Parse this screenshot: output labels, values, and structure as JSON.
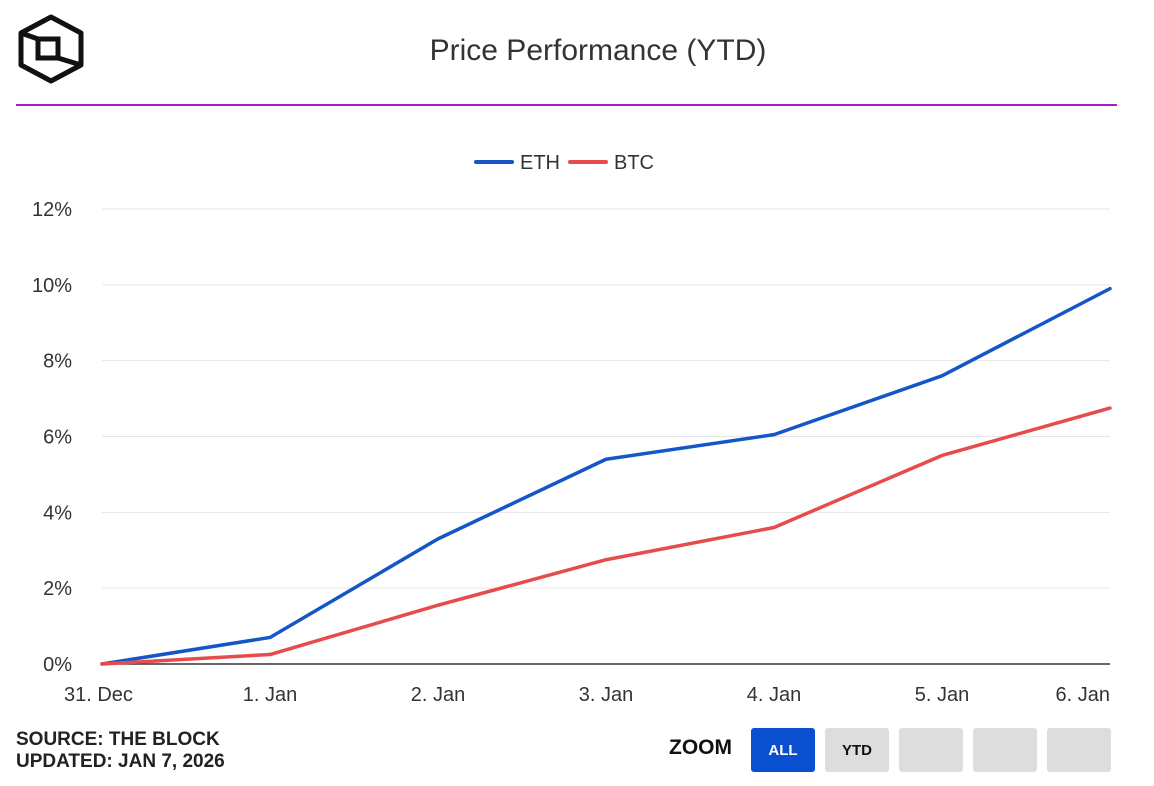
{
  "header": {
    "title": "Price Performance (YTD)"
  },
  "colors": {
    "accent_rule": "#a020c0",
    "eth": "#1456c8",
    "btc": "#e64c4c",
    "zoom_active": "#0b4fd1"
  },
  "chart_data": {
    "type": "line",
    "title": "Price Performance (YTD)",
    "categories": [
      "31. Dec",
      "1. Jan",
      "2. Jan",
      "3. Jan",
      "4. Jan",
      "5. Jan",
      "6. Jan"
    ],
    "series": [
      {
        "name": "ETH",
        "color": "#1456c8",
        "values": [
          0,
          0.7,
          3.3,
          5.4,
          6.05,
          7.6,
          9.9
        ]
      },
      {
        "name": "BTC",
        "color": "#e64c4c",
        "values": [
          0,
          0.25,
          1.55,
          2.75,
          3.6,
          5.5,
          6.75
        ]
      }
    ],
    "y_ticks": [
      "0%",
      "2%",
      "4%",
      "6%",
      "8%",
      "10%",
      "12%"
    ],
    "ylim": [
      0,
      12
    ],
    "xlabel": "",
    "ylabel": "",
    "legend_position": "top-center",
    "grid": true
  },
  "footer": {
    "source": "SOURCE: THE BLOCK",
    "updated": "UPDATED: JAN 7, 2026"
  },
  "zoom": {
    "label": "ZOOM",
    "buttons": [
      "ALL",
      "YTD",
      "",
      "",
      ""
    ],
    "active": "ALL"
  }
}
